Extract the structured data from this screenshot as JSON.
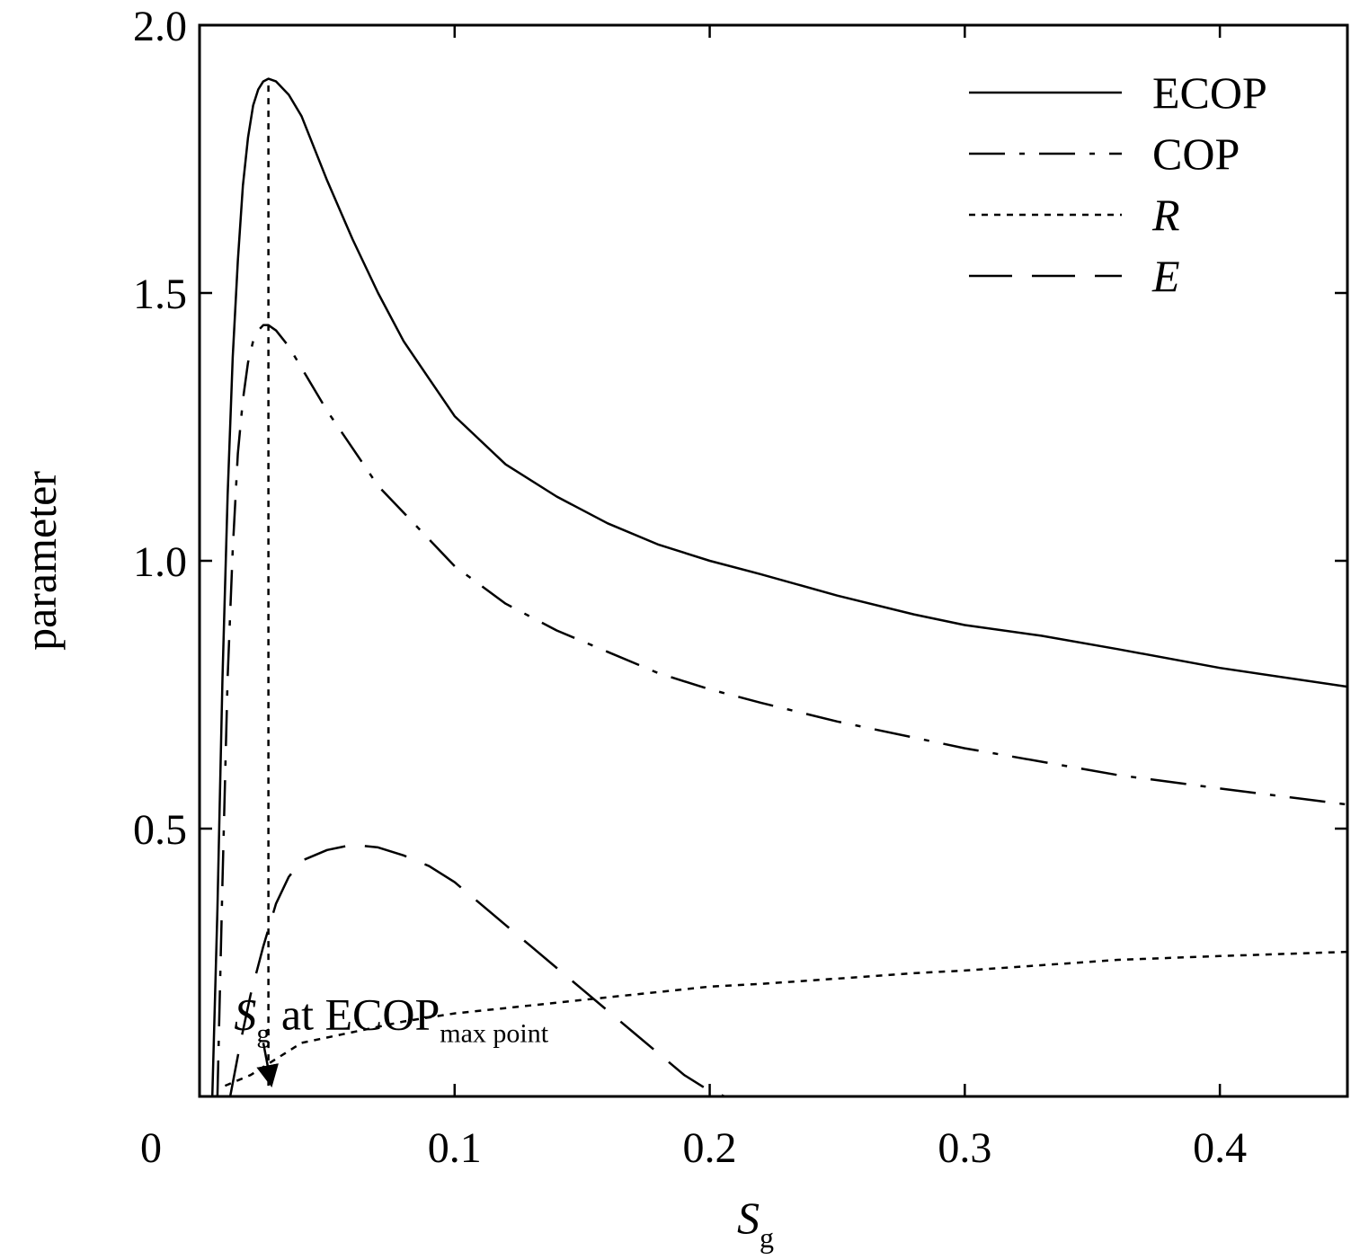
{
  "chart_data": {
    "type": "line",
    "xlabel": "S",
    "xlabel_sub": "g",
    "ylabel": "parameter",
    "xlim": [
      0,
      0.45
    ],
    "ylim": [
      0,
      2.0
    ],
    "x_ticks": [
      {
        "value": 0,
        "label": "0"
      },
      {
        "value": 0.1,
        "label": "0.1"
      },
      {
        "value": 0.2,
        "label": "0.2"
      },
      {
        "value": 0.3,
        "label": "0.3"
      },
      {
        "value": 0.4,
        "label": "0.4"
      }
    ],
    "y_ticks": [
      {
        "value": 0.5,
        "label": "0.5"
      },
      {
        "value": 1.0,
        "label": "1.0"
      },
      {
        "value": 1.5,
        "label": "1.5"
      },
      {
        "value": 2.0,
        "label": "2.0"
      }
    ],
    "grid": false,
    "legend_position": "top-right",
    "series": [
      {
        "name": "ECOP",
        "italic": false,
        "dash": "solid",
        "x": [
          0.005,
          0.007,
          0.009,
          0.011,
          0.013,
          0.015,
          0.017,
          0.019,
          0.021,
          0.023,
          0.025,
          0.027,
          0.03,
          0.035,
          0.04,
          0.05,
          0.06,
          0.07,
          0.08,
          0.09,
          0.1,
          0.12,
          0.14,
          0.16,
          0.18,
          0.2,
          0.22,
          0.25,
          0.28,
          0.3,
          0.33,
          0.36,
          0.4,
          0.45
        ],
        "values": [
          0.0,
          0.35,
          0.78,
          1.12,
          1.38,
          1.56,
          1.7,
          1.79,
          1.85,
          1.88,
          1.895,
          1.9,
          1.895,
          1.87,
          1.83,
          1.71,
          1.6,
          1.5,
          1.41,
          1.34,
          1.27,
          1.18,
          1.12,
          1.07,
          1.03,
          1.0,
          0.975,
          0.935,
          0.9,
          0.88,
          0.86,
          0.835,
          0.8,
          0.765
        ]
      },
      {
        "name": "COP",
        "italic": false,
        "dash": "dashdot",
        "x": [
          0.007,
          0.009,
          0.011,
          0.013,
          0.015,
          0.017,
          0.019,
          0.021,
          0.023,
          0.025,
          0.027,
          0.03,
          0.035,
          0.04,
          0.05,
          0.06,
          0.07,
          0.08,
          0.09,
          0.1,
          0.12,
          0.14,
          0.16,
          0.18,
          0.2,
          0.22,
          0.25,
          0.28,
          0.3,
          0.33,
          0.36,
          0.4,
          0.45
        ],
        "values": [
          0.0,
          0.4,
          0.78,
          1.02,
          1.2,
          1.3,
          1.37,
          1.41,
          1.43,
          1.44,
          1.44,
          1.43,
          1.4,
          1.36,
          1.28,
          1.21,
          1.14,
          1.09,
          1.04,
          0.99,
          0.92,
          0.87,
          0.83,
          0.79,
          0.76,
          0.735,
          0.7,
          0.67,
          0.65,
          0.625,
          0.6,
          0.575,
          0.545
        ]
      },
      {
        "name": "R",
        "italic": true,
        "dash": "dotted",
        "x": [
          0.01,
          0.02,
          0.03,
          0.04,
          0.06,
          0.08,
          0.1,
          0.12,
          0.14,
          0.16,
          0.18,
          0.2,
          0.22,
          0.25,
          0.28,
          0.3,
          0.33,
          0.36,
          0.4,
          0.45
        ],
        "values": [
          0.02,
          0.04,
          0.07,
          0.1,
          0.12,
          0.14,
          0.155,
          0.165,
          0.175,
          0.185,
          0.195,
          0.205,
          0.21,
          0.22,
          0.23,
          0.235,
          0.245,
          0.255,
          0.262,
          0.27
        ]
      },
      {
        "name": "E",
        "italic": true,
        "dash": "longdash",
        "x": [
          0.012,
          0.016,
          0.02,
          0.025,
          0.03,
          0.035,
          0.04,
          0.05,
          0.06,
          0.07,
          0.08,
          0.09,
          0.1,
          0.11,
          0.12,
          0.13,
          0.14,
          0.15,
          0.16,
          0.17,
          0.18,
          0.19,
          0.2,
          0.206
        ],
        "values": [
          0.0,
          0.1,
          0.19,
          0.28,
          0.36,
          0.41,
          0.44,
          0.46,
          0.47,
          0.465,
          0.45,
          0.43,
          0.4,
          0.36,
          0.32,
          0.28,
          0.24,
          0.2,
          0.16,
          0.12,
          0.08,
          0.04,
          0.01,
          0.0
        ]
      }
    ],
    "reference_line": {
      "x": 0.027,
      "y_from": 0.02,
      "y_to": 1.9
    },
    "annotation": {
      "main": "S",
      "sub1": "g",
      "rest": " at ECOP",
      "sub2": "max point",
      "x": 0.01,
      "y": 0.15,
      "arrow_to": {
        "x": 0.028,
        "y": 0.025
      }
    }
  }
}
